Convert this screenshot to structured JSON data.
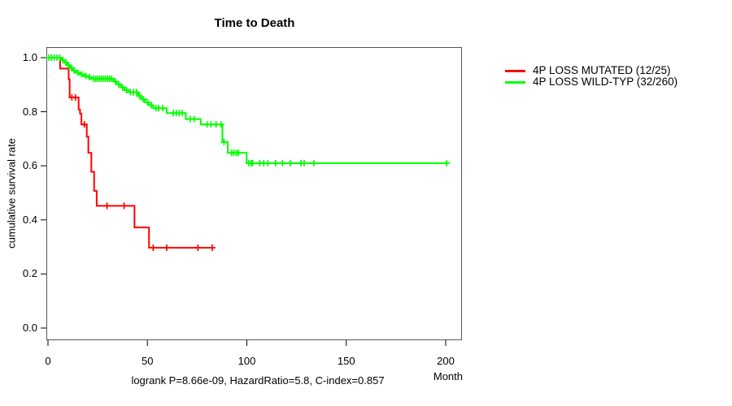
{
  "title": "Time to Death",
  "annotation": "logrank P=8.66e-09, HazardRatio=5.8, C-index=0.857",
  "legend": {
    "items": [
      {
        "label": "4P LOSS MUTATED (12/25)",
        "color": "#ff0000"
      },
      {
        "label": "4P LOSS WILD-TYP (32/260)",
        "color": "#00ff00"
      }
    ]
  },
  "chart_data": {
    "type": "line",
    "subtype": "kaplan-meier-step-curve",
    "title": "Time to Death",
    "xlabel": "Month",
    "ylabel": "cumulative survival rate",
    "xlim": [
      0,
      208
    ],
    "ylim": [
      0.0,
      1.0
    ],
    "x_ticks": [
      0,
      50,
      100,
      150,
      200
    ],
    "y_ticks": [
      0.0,
      0.2,
      0.4,
      0.6,
      0.8,
      1.0
    ],
    "grid": false,
    "legend_position": "right-outside",
    "series": [
      {
        "name": "4P LOSS MUTATED (12/25)",
        "color": "#ff0000",
        "events_total": "12/25",
        "end_month": 82.6,
        "steps": [
          [
            0,
            1.0
          ],
          [
            6.1,
            0.96
          ],
          [
            10.4,
            0.92
          ],
          [
            10.9,
            0.853
          ],
          [
            15.4,
            0.808
          ],
          [
            16.1,
            0.793
          ],
          [
            16.8,
            0.753
          ],
          [
            19.5,
            0.708
          ],
          [
            20.3,
            0.648
          ],
          [
            21.8,
            0.578
          ],
          [
            23.2,
            0.507
          ],
          [
            24.5,
            0.452
          ],
          [
            43.5,
            0.372
          ],
          [
            50.8,
            0.297
          ]
        ],
        "censors": [
          [
            12.0,
            0.853
          ],
          [
            13.8,
            0.853
          ],
          [
            18.3,
            0.753
          ],
          [
            29.7,
            0.452
          ],
          [
            38.3,
            0.452
          ],
          [
            52.9,
            0.297
          ],
          [
            59.7,
            0.297
          ],
          [
            75.4,
            0.297
          ],
          [
            82.6,
            0.297
          ]
        ]
      },
      {
        "name": "4P LOSS WILD-TYP (32/260)",
        "color": "#00ff00",
        "events_total": "32/260",
        "end_month": 200.5,
        "steps": [
          [
            0,
            1.0
          ],
          [
            6.8,
            0.991
          ],
          [
            8.4,
            0.982
          ],
          [
            9.7,
            0.972
          ],
          [
            11.0,
            0.962
          ],
          [
            12.5,
            0.952
          ],
          [
            14.0,
            0.945
          ],
          [
            16.0,
            0.938
          ],
          [
            18.0,
            0.932
          ],
          [
            20.0,
            0.928
          ],
          [
            21.6,
            0.922
          ],
          [
            33.0,
            0.912
          ],
          [
            34.5,
            0.902
          ],
          [
            36.5,
            0.89
          ],
          [
            38.5,
            0.88
          ],
          [
            40.5,
            0.872
          ],
          [
            45.4,
            0.858
          ],
          [
            47.0,
            0.846
          ],
          [
            48.8,
            0.835
          ],
          [
            50.8,
            0.824
          ],
          [
            52.9,
            0.813
          ],
          [
            59.7,
            0.795
          ],
          [
            69.3,
            0.773
          ],
          [
            76.8,
            0.753
          ],
          [
            87.7,
            0.688
          ],
          [
            90.4,
            0.648
          ],
          [
            99.9,
            0.61
          ]
        ],
        "censors": [
          [
            0.5,
            1.0
          ],
          [
            1.8,
            1.0
          ],
          [
            3.1,
            1.0
          ],
          [
            4.5,
            1.0
          ],
          [
            5.9,
            1.0
          ],
          [
            7.5,
            0.991
          ],
          [
            9.0,
            0.982
          ],
          [
            10.3,
            0.972
          ],
          [
            11.8,
            0.962
          ],
          [
            13.2,
            0.952
          ],
          [
            15.0,
            0.945
          ],
          [
            17.0,
            0.938
          ],
          [
            19.0,
            0.932
          ],
          [
            20.8,
            0.928
          ],
          [
            23.0,
            0.922
          ],
          [
            24.0,
            0.922
          ],
          [
            25.0,
            0.922
          ],
          [
            26.0,
            0.922
          ],
          [
            27.0,
            0.922
          ],
          [
            28.0,
            0.922
          ],
          [
            29.0,
            0.922
          ],
          [
            30.0,
            0.922
          ],
          [
            31.0,
            0.922
          ],
          [
            32.0,
            0.922
          ],
          [
            33.8,
            0.912
          ],
          [
            35.5,
            0.902
          ],
          [
            37.5,
            0.89
          ],
          [
            39.5,
            0.88
          ],
          [
            41.5,
            0.872
          ],
          [
            43.0,
            0.872
          ],
          [
            44.5,
            0.872
          ],
          [
            46.0,
            0.858
          ],
          [
            48.0,
            0.846
          ],
          [
            50.0,
            0.835
          ],
          [
            52.0,
            0.824
          ],
          [
            54.3,
            0.813
          ],
          [
            55.6,
            0.813
          ],
          [
            57.7,
            0.813
          ],
          [
            63.0,
            0.795
          ],
          [
            64.5,
            0.795
          ],
          [
            66.0,
            0.795
          ],
          [
            67.5,
            0.795
          ],
          [
            71.5,
            0.773
          ],
          [
            73.5,
            0.773
          ],
          [
            80.0,
            0.753
          ],
          [
            82.0,
            0.753
          ],
          [
            84.5,
            0.753
          ],
          [
            87.0,
            0.753
          ],
          [
            88.5,
            0.688
          ],
          [
            92.4,
            0.648
          ],
          [
            93.5,
            0.648
          ],
          [
            94.7,
            0.648
          ],
          [
            95.7,
            0.648
          ],
          [
            101.0,
            0.61
          ],
          [
            102.2,
            0.61
          ],
          [
            102.9,
            0.61
          ],
          [
            106.5,
            0.61
          ],
          [
            108.5,
            0.61
          ],
          [
            110.6,
            0.61
          ],
          [
            114.5,
            0.61
          ],
          [
            117.9,
            0.61
          ],
          [
            121.8,
            0.61
          ],
          [
            127.2,
            0.61
          ],
          [
            128.8,
            0.61
          ],
          [
            133.7,
            0.61
          ],
          [
            200.5,
            0.61
          ]
        ]
      }
    ]
  }
}
